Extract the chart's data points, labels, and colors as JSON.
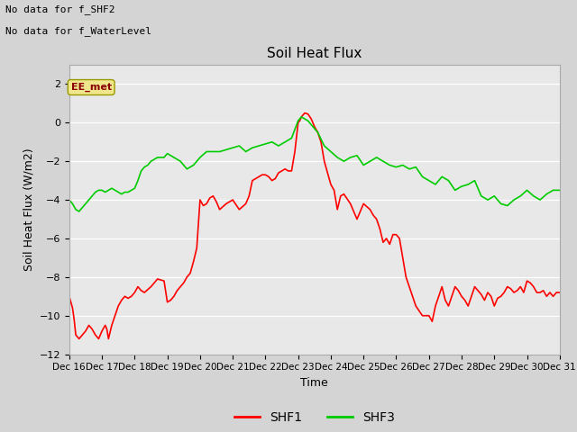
{
  "title": "Soil Heat Flux",
  "ylabel": "Soil Heat Flux (W/m2)",
  "xlabel": "Time",
  "annotation_lines": [
    "No data for f_SHF2",
    "No data for f_WaterLevel"
  ],
  "ee_met_label": "EE_met",
  "legend_entries": [
    "SHF1",
    "SHF3"
  ],
  "legend_colors": [
    "#ff0000",
    "#00cc00"
  ],
  "ylim": [
    -12,
    3
  ],
  "yticks": [
    -12,
    -10,
    -8,
    -6,
    -4,
    -2,
    0,
    2
  ],
  "xlim": [
    16,
    31
  ],
  "xtick_labels": [
    "Dec 16",
    "Dec 17",
    "Dec 18",
    "Dec 19",
    "Dec 20",
    "Dec 21",
    "Dec 22",
    "Dec 23",
    "Dec 24",
    "Dec 25",
    "Dec 26",
    "Dec 27",
    "Dec 28",
    "Dec 29",
    "Dec 30",
    "Dec 31"
  ],
  "plot_bg_color": "#e8e8e8",
  "fig_bg_color": "#d4d4d4",
  "shf1_x": [
    16.0,
    16.05,
    16.1,
    16.15,
    16.2,
    16.3,
    16.4,
    16.5,
    16.6,
    16.7,
    16.8,
    16.9,
    17.0,
    17.1,
    17.15,
    17.2,
    17.3,
    17.4,
    17.5,
    17.6,
    17.7,
    17.8,
    17.9,
    18.0,
    18.1,
    18.2,
    18.3,
    18.5,
    18.7,
    18.9,
    19.0,
    19.1,
    19.2,
    19.3,
    19.4,
    19.5,
    19.6,
    19.7,
    19.8,
    19.9,
    20.0,
    20.1,
    20.2,
    20.3,
    20.4,
    20.5,
    20.6,
    20.8,
    21.0,
    21.2,
    21.4,
    21.5,
    21.6,
    21.7,
    21.8,
    21.9,
    22.0,
    22.1,
    22.2,
    22.3,
    22.4,
    22.5,
    22.6,
    22.7,
    22.8,
    22.9,
    23.0,
    23.05,
    23.1,
    23.2,
    23.3,
    23.4,
    23.5,
    23.6,
    23.7,
    23.8,
    24.0,
    24.1,
    24.2,
    24.3,
    24.4,
    24.6,
    24.8,
    25.0,
    25.2,
    25.3,
    25.4,
    25.5,
    25.6,
    25.7,
    25.8,
    25.9,
    26.0,
    26.1,
    26.2,
    26.3,
    26.4,
    26.5,
    26.6,
    26.8,
    27.0,
    27.1,
    27.2,
    27.3,
    27.4,
    27.5,
    27.6,
    27.7,
    27.8,
    27.9,
    28.0,
    28.1,
    28.2,
    28.3,
    28.4,
    28.5,
    28.6,
    28.7,
    28.8,
    28.9,
    29.0,
    29.1,
    29.2,
    29.3,
    29.4,
    29.5,
    29.6,
    29.7,
    29.8,
    29.9,
    30.0,
    30.1,
    30.2,
    30.3,
    30.4,
    30.5,
    30.6,
    30.7,
    30.8,
    30.9,
    31.0
  ],
  "shf1_y": [
    -9.0,
    -9.3,
    -9.6,
    -10.2,
    -11.0,
    -11.2,
    -11.0,
    -10.8,
    -10.5,
    -10.7,
    -11.0,
    -11.2,
    -10.8,
    -10.5,
    -10.7,
    -11.2,
    -10.5,
    -10.0,
    -9.5,
    -9.2,
    -9.0,
    -9.1,
    -9.0,
    -8.8,
    -8.5,
    -8.7,
    -8.8,
    -8.5,
    -8.1,
    -8.2,
    -9.3,
    -9.2,
    -9.0,
    -8.7,
    -8.5,
    -8.3,
    -8.0,
    -7.8,
    -7.2,
    -6.5,
    -4.0,
    -4.3,
    -4.2,
    -3.9,
    -3.8,
    -4.1,
    -4.5,
    -4.2,
    -4.0,
    -4.5,
    -4.2,
    -3.8,
    -3.0,
    -2.9,
    -2.8,
    -2.7,
    -2.7,
    -2.8,
    -3.0,
    -2.9,
    -2.6,
    -2.5,
    -2.4,
    -2.5,
    -2.5,
    -1.5,
    -0.0,
    0.1,
    0.3,
    0.5,
    0.45,
    0.2,
    -0.2,
    -0.5,
    -1.0,
    -2.0,
    -3.2,
    -3.5,
    -4.5,
    -3.8,
    -3.7,
    -4.2,
    -5.0,
    -4.2,
    -4.5,
    -4.8,
    -5.0,
    -5.5,
    -6.2,
    -6.0,
    -6.3,
    -5.8,
    -5.8,
    -6.0,
    -7.0,
    -8.0,
    -8.5,
    -9.0,
    -9.5,
    -10.0,
    -10.0,
    -10.3,
    -9.5,
    -9.0,
    -8.5,
    -9.2,
    -9.5,
    -9.0,
    -8.5,
    -8.7,
    -9.0,
    -9.2,
    -9.5,
    -9.0,
    -8.5,
    -8.7,
    -8.9,
    -9.2,
    -8.8,
    -9.0,
    -9.5,
    -9.1,
    -9.0,
    -8.8,
    -8.5,
    -8.6,
    -8.8,
    -8.7,
    -8.5,
    -8.8,
    -8.2,
    -8.3,
    -8.5,
    -8.8,
    -8.8,
    -8.7,
    -9.0,
    -8.8,
    -9.0,
    -8.8,
    -8.8
  ],
  "shf3_x": [
    16.0,
    16.1,
    16.2,
    16.3,
    16.4,
    16.5,
    16.6,
    16.7,
    16.8,
    16.9,
    17.0,
    17.1,
    17.2,
    17.3,
    17.4,
    17.5,
    17.6,
    17.7,
    17.8,
    17.9,
    18.0,
    18.1,
    18.2,
    18.3,
    18.4,
    18.5,
    18.6,
    18.7,
    18.8,
    18.9,
    19.0,
    19.2,
    19.4,
    19.6,
    19.8,
    20.0,
    20.2,
    20.4,
    20.6,
    20.8,
    21.0,
    21.2,
    21.4,
    21.6,
    21.8,
    22.0,
    22.2,
    22.4,
    22.6,
    22.8,
    23.0,
    23.1,
    23.2,
    23.3,
    23.4,
    23.5,
    23.6,
    23.8,
    24.0,
    24.2,
    24.4,
    24.6,
    24.8,
    25.0,
    25.2,
    25.4,
    25.6,
    25.8,
    26.0,
    26.2,
    26.4,
    26.6,
    26.8,
    27.0,
    27.2,
    27.4,
    27.6,
    27.8,
    28.0,
    28.2,
    28.4,
    28.6,
    28.8,
    29.0,
    29.2,
    29.4,
    29.6,
    29.8,
    30.0,
    30.2,
    30.4,
    30.6,
    30.8,
    31.0
  ],
  "shf3_y": [
    -4.0,
    -4.2,
    -4.5,
    -4.6,
    -4.4,
    -4.2,
    -4.0,
    -3.8,
    -3.6,
    -3.5,
    -3.5,
    -3.6,
    -3.5,
    -3.4,
    -3.5,
    -3.6,
    -3.7,
    -3.6,
    -3.6,
    -3.5,
    -3.4,
    -3.0,
    -2.5,
    -2.3,
    -2.2,
    -2.0,
    -1.9,
    -1.8,
    -1.8,
    -1.8,
    -1.6,
    -1.8,
    -2.0,
    -2.4,
    -2.2,
    -1.8,
    -1.5,
    -1.5,
    -1.5,
    -1.4,
    -1.3,
    -1.2,
    -1.5,
    -1.3,
    -1.2,
    -1.1,
    -1.0,
    -1.2,
    -1.0,
    -0.8,
    0.1,
    0.3,
    0.2,
    0.1,
    -0.1,
    -0.3,
    -0.5,
    -1.2,
    -1.5,
    -1.8,
    -2.0,
    -1.8,
    -1.7,
    -2.2,
    -2.0,
    -1.8,
    -2.0,
    -2.2,
    -2.3,
    -2.2,
    -2.4,
    -2.3,
    -2.8,
    -3.0,
    -3.2,
    -2.8,
    -3.0,
    -3.5,
    -3.3,
    -3.2,
    -3.0,
    -3.8,
    -4.0,
    -3.8,
    -4.2,
    -4.3,
    -4.0,
    -3.8,
    -3.5,
    -3.8,
    -4.0,
    -3.7,
    -3.5,
    -3.5
  ]
}
